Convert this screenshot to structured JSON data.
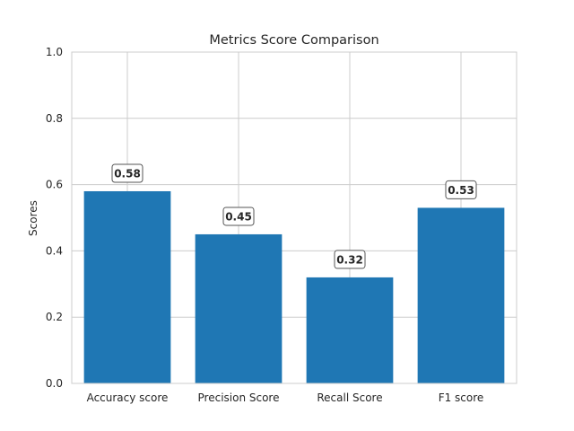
{
  "chart_data": {
    "type": "bar",
    "title": "Metrics Score Comparison",
    "xlabel": "",
    "ylabel": "Scores",
    "categories": [
      "Accuracy score",
      "Precision Score",
      "Recall Score",
      "F1 score"
    ],
    "values": [
      0.58,
      0.45,
      0.32,
      0.53
    ],
    "data_labels": [
      "0.58",
      "0.45",
      "0.32",
      "0.53"
    ],
    "ylim": [
      0,
      1.0
    ],
    "yticks": [
      "0.0",
      "0.2",
      "0.4",
      "0.6",
      "0.8",
      "1.0"
    ],
    "ytick_values": [
      0,
      0.2,
      0.4,
      0.6,
      0.8,
      1.0
    ],
    "grid": true,
    "bar_color": "#1f77b4",
    "grid_color": "#cccccc",
    "text_color": "#262626"
  }
}
